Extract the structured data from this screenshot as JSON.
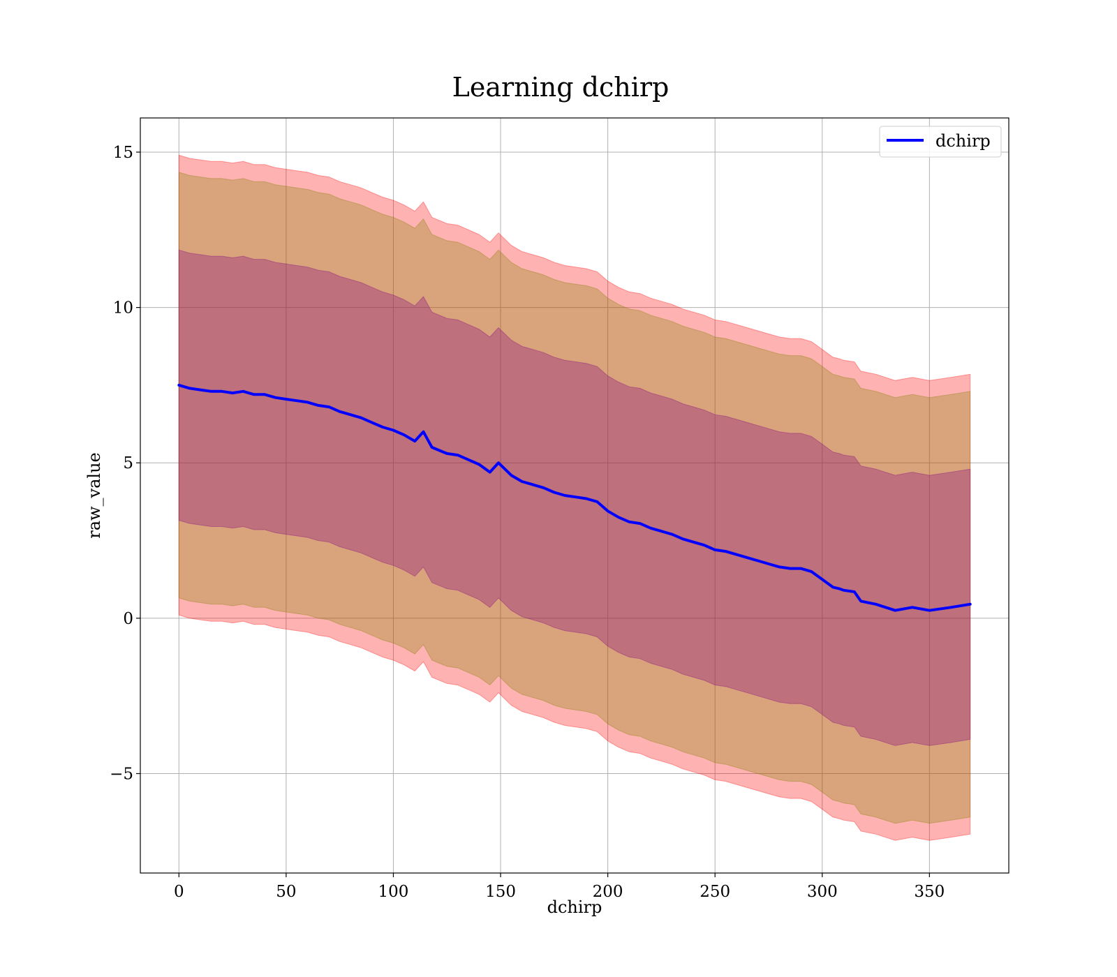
{
  "chart_data": {
    "type": "line",
    "title": "Learning dchirp",
    "xlabel": "dchirp",
    "ylabel": "raw_value",
    "xlim": [
      -18,
      387
    ],
    "ylim": [
      -8.2,
      16.1
    ],
    "xticks": [
      0,
      50,
      100,
      150,
      200,
      250,
      300,
      350
    ],
    "yticks": [
      -5,
      0,
      5,
      10,
      15
    ],
    "xtick_labels": [
      "0",
      "50",
      "100",
      "150",
      "200",
      "250",
      "300",
      "350"
    ],
    "ytick_labels": [
      "−5",
      "0",
      "5",
      "10",
      "15"
    ],
    "grid": true,
    "legend": {
      "position": "top-right",
      "entries": [
        "dchirp"
      ]
    },
    "colors": {
      "line": "#0000ff",
      "band_outer": "#ff0000",
      "band_middle": "#808000",
      "band_inner": "#800080",
      "grid": "#b0b0b0"
    },
    "band_alpha": 0.3,
    "series": [
      {
        "name": "dchirp",
        "x": [
          0,
          5,
          10,
          15,
          20,
          25,
          30,
          35,
          40,
          45,
          50,
          55,
          60,
          65,
          70,
          75,
          80,
          85,
          90,
          95,
          100,
          105,
          110,
          114,
          118,
          125,
          130,
          135,
          140,
          145,
          149,
          155,
          160,
          165,
          170,
          175,
          180,
          185,
          190,
          195,
          200,
          205,
          210,
          215,
          220,
          225,
          230,
          235,
          240,
          245,
          250,
          255,
          260,
          265,
          270,
          275,
          280,
          285,
          290,
          295,
          300,
          305,
          308,
          310,
          315,
          318,
          325,
          334,
          342,
          350,
          360,
          369
        ],
        "values": [
          7.5,
          7.4,
          7.35,
          7.3,
          7.3,
          7.25,
          7.3,
          7.2,
          7.2,
          7.1,
          7.05,
          7.0,
          6.95,
          6.85,
          6.8,
          6.65,
          6.55,
          6.45,
          6.3,
          6.15,
          6.05,
          5.9,
          5.7,
          6.0,
          5.5,
          5.3,
          5.25,
          5.1,
          4.95,
          4.7,
          5.0,
          4.6,
          4.4,
          4.3,
          4.2,
          4.05,
          3.95,
          3.9,
          3.85,
          3.75,
          3.45,
          3.25,
          3.1,
          3.05,
          2.9,
          2.8,
          2.7,
          2.55,
          2.45,
          2.35,
          2.2,
          2.15,
          2.05,
          1.95,
          1.85,
          1.75,
          1.65,
          1.6,
          1.6,
          1.5,
          1.25,
          1.0,
          0.95,
          0.9,
          0.85,
          0.55,
          0.45,
          0.25,
          0.35,
          0.25,
          0.35,
          0.45
        ]
      }
    ],
    "bands": [
      {
        "name": "outer",
        "lower_offset": -7.4,
        "upper_offset": 7.4
      },
      {
        "name": "middle",
        "lower_offset": -6.85,
        "upper_offset": 6.85
      },
      {
        "name": "inner",
        "lower_offset": -4.35,
        "upper_offset": 4.35
      }
    ]
  }
}
